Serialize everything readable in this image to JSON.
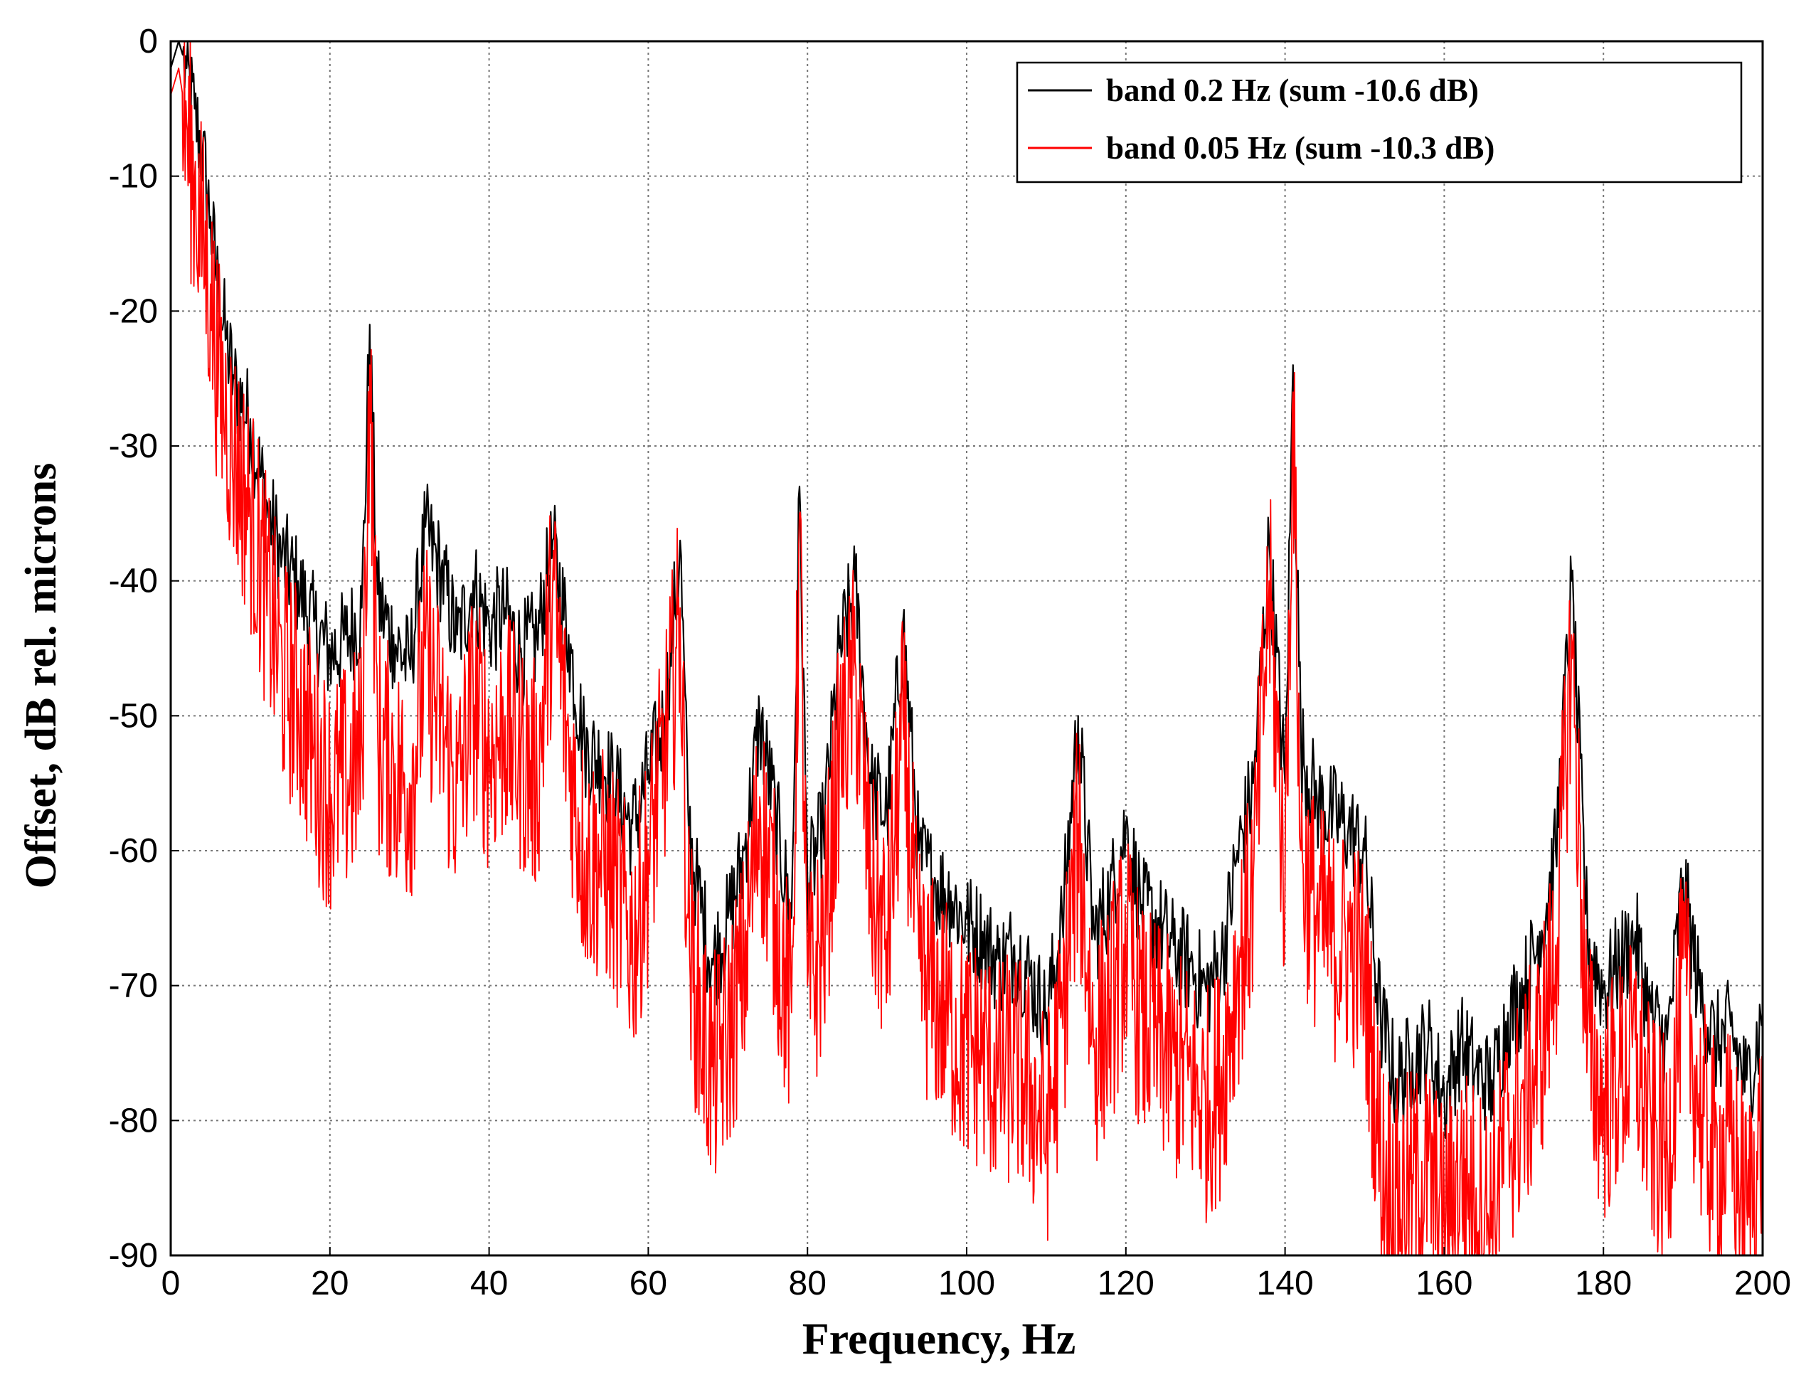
{
  "chart_data": {
    "type": "line",
    "xlabel": "Frequency, Hz",
    "ylabel": "Offset, dB rel. microns",
    "xlim": [
      0,
      200
    ],
    "ylim": [
      -90,
      0
    ],
    "x_ticks": [
      0,
      20,
      40,
      60,
      80,
      100,
      120,
      140,
      160,
      180,
      200
    ],
    "y_ticks": [
      0,
      -10,
      -20,
      -30,
      -40,
      -50,
      -60,
      -70,
      -80,
      -90
    ],
    "grid": true,
    "legend_position": "top-right",
    "series": [
      {
        "name": "band 0.2 Hz (sum -10.6 dB)",
        "color": "#000000",
        "x": [
          0,
          1,
          2,
          3,
          4,
          5,
          6,
          7,
          8,
          10,
          12,
          14,
          16,
          18,
          20,
          22,
          24,
          25,
          26,
          28,
          30,
          32,
          34,
          36,
          38,
          40,
          42,
          44,
          46,
          48,
          50,
          52,
          54,
          56,
          58,
          60,
          62,
          64,
          65,
          66,
          68,
          70,
          72,
          74,
          76,
          78,
          79,
          80,
          82,
          84,
          86,
          88,
          90,
          92,
          94,
          96,
          98,
          100,
          102,
          104,
          106,
          108,
          110,
          112,
          114,
          116,
          118,
          120,
          122,
          124,
          126,
          128,
          130,
          132,
          134,
          136,
          138,
          140,
          141,
          142,
          144,
          146,
          148,
          150,
          152,
          154,
          156,
          158,
          160,
          162,
          164,
          166,
          168,
          170,
          172,
          174,
          176,
          178,
          180,
          182,
          184,
          186,
          188,
          190,
          192,
          194,
          196,
          198,
          200
        ],
        "y": [
          -2,
          0,
          -2,
          -5,
          -8,
          -13,
          -18,
          -22,
          -25,
          -28,
          -34,
          -38,
          -40,
          -43,
          -45,
          -44,
          -42,
          -21,
          -41,
          -44,
          -46,
          -36,
          -39,
          -44,
          -40,
          -43,
          -42,
          -45,
          -44,
          -37,
          -44,
          -52,
          -53,
          -55,
          -58,
          -54,
          -50,
          -37,
          -57,
          -62,
          -68,
          -65,
          -60,
          -50,
          -57,
          -65,
          -33,
          -62,
          -58,
          -45,
          -40,
          -55,
          -57,
          -43,
          -60,
          -62,
          -63,
          -65,
          -66,
          -68,
          -67,
          -69,
          -72,
          -65,
          -50,
          -66,
          -63,
          -58,
          -64,
          -65,
          -67,
          -68,
          -70,
          -68,
          -60,
          -55,
          -37,
          -55,
          -24,
          -52,
          -56,
          -57,
          -58,
          -60,
          -72,
          -77,
          -75,
          -74,
          -78,
          -74,
          -76,
          -77,
          -72,
          -70,
          -66,
          -60,
          -40,
          -66,
          -70,
          -68,
          -66,
          -72,
          -74,
          -62,
          -70,
          -74,
          -73,
          -77,
          -72
        ]
      },
      {
        "name": "band 0.05 Hz (sum -10.3 dB)",
        "color": "#ff0000",
        "x": [
          0,
          1,
          2,
          3,
          4,
          5,
          6,
          7,
          8,
          10,
          12,
          14,
          16,
          18,
          20,
          22,
          24,
          25,
          26,
          28,
          30,
          32,
          34,
          36,
          38,
          40,
          42,
          44,
          46,
          48,
          50,
          52,
          54,
          56,
          58,
          60,
          62,
          64,
          65,
          66,
          68,
          70,
          72,
          74,
          76,
          78,
          79,
          80,
          82,
          84,
          86,
          88,
          90,
          92,
          94,
          96,
          98,
          100,
          102,
          104,
          106,
          108,
          110,
          112,
          114,
          116,
          118,
          120,
          122,
          124,
          126,
          128,
          130,
          132,
          134,
          136,
          138,
          140,
          141,
          142,
          144,
          146,
          148,
          150,
          152,
          154,
          156,
          158,
          160,
          162,
          164,
          166,
          168,
          170,
          172,
          174,
          176,
          178,
          180,
          182,
          184,
          186,
          188,
          190,
          192,
          194,
          196,
          198,
          200
        ],
        "y": [
          -4,
          -2,
          -6,
          -10,
          -14,
          -18,
          -24,
          -27,
          -30,
          -34,
          -40,
          -46,
          -48,
          -52,
          -55,
          -54,
          -52,
          -24,
          -51,
          -53,
          -55,
          -45,
          -50,
          -55,
          -48,
          -52,
          -50,
          -52,
          -54,
          -40,
          -52,
          -60,
          -60,
          -62,
          -66,
          -60,
          -52,
          -42,
          -65,
          -70,
          -76,
          -73,
          -68,
          -56,
          -64,
          -72,
          -35,
          -70,
          -66,
          -52,
          -46,
          -62,
          -66,
          -50,
          -68,
          -70,
          -72,
          -74,
          -74,
          -76,
          -75,
          -77,
          -80,
          -72,
          -58,
          -74,
          -71,
          -66,
          -72,
          -73,
          -75,
          -76,
          -78,
          -76,
          -68,
          -62,
          -40,
          -62,
          -26,
          -60,
          -64,
          -66,
          -66,
          -68,
          -82,
          -85,
          -84,
          -83,
          -87,
          -83,
          -85,
          -86,
          -80,
          -78,
          -74,
          -67,
          -44,
          -74,
          -78,
          -76,
          -74,
          -80,
          -82,
          -68,
          -78,
          -82,
          -81,
          -86,
          -80
        ]
      }
    ]
  }
}
